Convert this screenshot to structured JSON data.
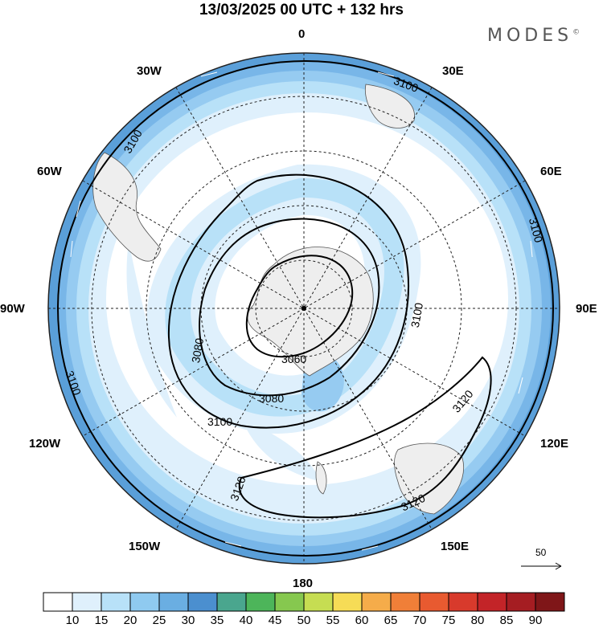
{
  "title": "13/03/2025  00 UTC  + 132 hrs",
  "brand": "MODES",
  "brand_mark": "©",
  "longitude_labels": {
    "lon_0": "0",
    "lon_30e": "30E",
    "lon_60e": "60E",
    "lon_90e": "90E",
    "lon_120e": "120E",
    "lon_150e": "150E",
    "lon_180": "180",
    "lon_150w": "150W",
    "lon_120w": "120W",
    "lon_90w": "90W",
    "lon_60w": "60W",
    "lon_30w": "30W"
  },
  "contour_labels": [
    "3060",
    "3080",
    "3100",
    "3120"
  ],
  "vector_scale_label": "50",
  "colorbar": {
    "ticks": [
      "10",
      "15",
      "20",
      "25",
      "30",
      "35",
      "40",
      "45",
      "50",
      "55",
      "60",
      "65",
      "70",
      "75",
      "80",
      "85",
      "90"
    ],
    "colors": [
      "#ffffff",
      "#dff0fc",
      "#b8e1f8",
      "#8fcaf0",
      "#6aaee2",
      "#4b8fcf",
      "#4aa68e",
      "#4db55a",
      "#86c84f",
      "#c6dd52",
      "#f6dc56",
      "#f5ac4a",
      "#f07f38",
      "#e85a30",
      "#d83a2c",
      "#c32428",
      "#a51d22",
      "#7f1618"
    ]
  }
}
